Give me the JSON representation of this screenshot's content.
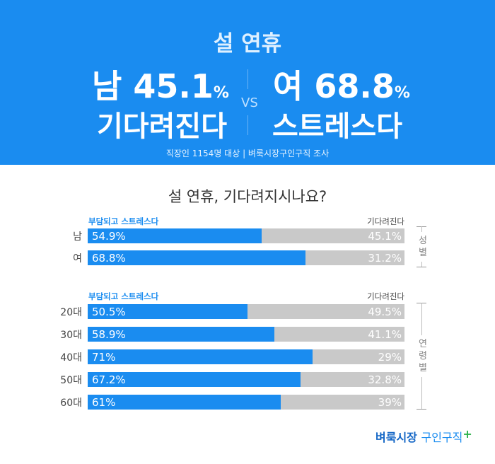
{
  "header": {
    "title": "설 연휴",
    "left_line1": "남 45.1",
    "left_pct": "%",
    "left_line2": "기다려진다",
    "vs": "VS",
    "right_line1": "여 68.8",
    "right_pct": "%",
    "right_line2": "스트레스다",
    "source": "직장인 1154명 대상  |  벼룩시장구인구직 조사"
  },
  "chart_data": {
    "type": "bar",
    "stacked": true,
    "orientation": "horizontal",
    "title": "설 연휴, 기다려지시나요?",
    "ylim": [
      0,
      100
    ],
    "legend_left": "부담되고 스트레스다",
    "legend_right": "기다려진다",
    "groups": [
      {
        "label": "성별",
        "categories": [
          "남",
          "여"
        ],
        "series": [
          {
            "name": "부담되고 스트레스다",
            "values": [
              54.9,
              68.8
            ],
            "labels": [
              "54.9%",
              "68.8%"
            ],
            "color": "#1a8cf0"
          },
          {
            "name": "기다려진다",
            "values": [
              45.1,
              31.2
            ],
            "labels": [
              "45.1%",
              "31.2%"
            ],
            "color": "#c9c9c9"
          }
        ]
      },
      {
        "label": "연령별",
        "categories": [
          "20대",
          "30대",
          "40대",
          "50대",
          "60대"
        ],
        "series": [
          {
            "name": "부담되고 스트레스다",
            "values": [
              50.5,
              58.9,
              71,
              67.2,
              61
            ],
            "labels": [
              "50.5%",
              "58.9%",
              "71%",
              "67.2%",
              "61%"
            ],
            "color": "#1a8cf0"
          },
          {
            "name": "기다려진다",
            "values": [
              49.5,
              41.1,
              29,
              32.8,
              39
            ],
            "labels": [
              "49.5%",
              "41.1%",
              "29%",
              "32.8%",
              "39%"
            ],
            "color": "#c9c9c9"
          }
        ]
      }
    ]
  },
  "brand": {
    "part1": "벼룩시장",
    "part2": "구인구직",
    "plus": "+"
  }
}
